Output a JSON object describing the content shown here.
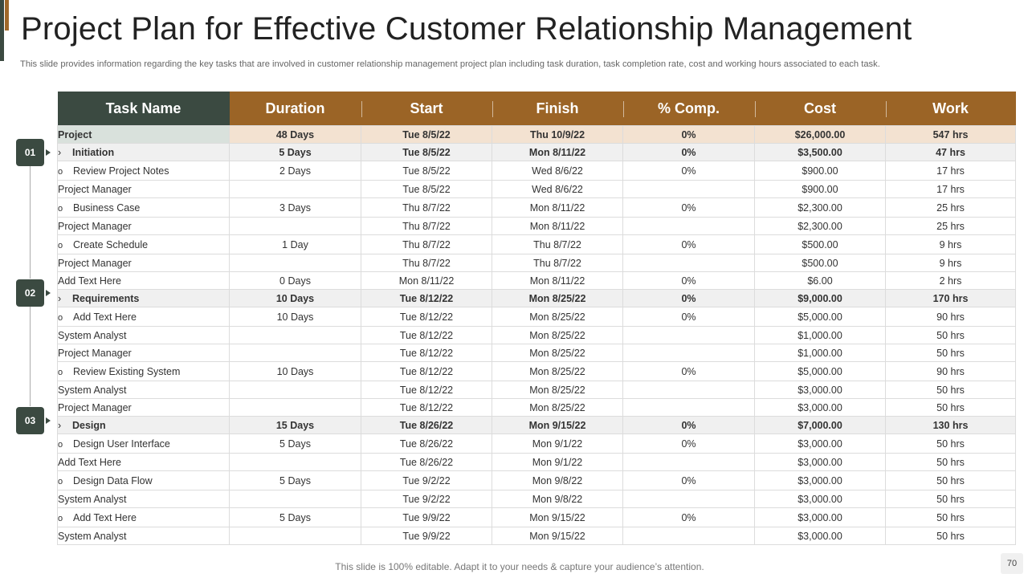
{
  "page": {
    "title": "Project Plan for Effective Customer Relationship Management",
    "subtitle": "This slide provides information regarding the key tasks that are involved in customer relationship management project plan including task duration, task completion rate, cost and working hours associated to each task.",
    "footer": "This slide is 100% editable. Adapt it to your needs & capture your audience’s attention.",
    "page_number": "70"
  },
  "colors": {
    "header_brown": "#9b6426",
    "header_green": "#3b4a41",
    "project_row_bg": "#f3e2d1",
    "phase_row_bg": "#f0f0f0"
  },
  "phase_badges": [
    "01",
    "02",
    "03"
  ],
  "table": {
    "columns": [
      "Task Name",
      "Duration",
      "Start",
      "Finish",
      "% Comp.",
      "Cost",
      "Work"
    ],
    "rows": [
      {
        "kind": "project",
        "level": 0,
        "marker": "",
        "task": "Project",
        "duration": "48 Days",
        "start": "Tue 8/5/22",
        "finish": "Thu 10/9/22",
        "comp": "0%",
        "cost": "$26,000.00",
        "work": "547 hrs"
      },
      {
        "kind": "phase",
        "level": 1,
        "marker": "›",
        "task": "Initiation",
        "duration": "5 Days",
        "start": "Tue 8/5/22",
        "finish": "Mon 8/11/22",
        "comp": "0%",
        "cost": "$3,500.00",
        "work": "47 hrs"
      },
      {
        "kind": "sub",
        "level": 2,
        "marker": "o",
        "task": "Review Project Notes",
        "duration": "2 Days",
        "start": "Tue 8/5/22",
        "finish": "Wed 8/6/22",
        "comp": "0%",
        "cost": "$900.00",
        "work": "17 hrs"
      },
      {
        "kind": "res",
        "level": 3,
        "marker": "",
        "task": "Project Manager",
        "duration": "",
        "start": "Tue 8/5/22",
        "finish": "Wed 8/6/22",
        "comp": "",
        "cost": "$900.00",
        "work": "17 hrs"
      },
      {
        "kind": "sub",
        "level": 2,
        "marker": "o",
        "task": "Business Case",
        "duration": "3 Days",
        "start": "Thu 8/7/22",
        "finish": "Mon 8/11/22",
        "comp": "0%",
        "cost": "$2,300.00",
        "work": "25 hrs"
      },
      {
        "kind": "res",
        "level": 3,
        "marker": "",
        "task": "Project Manager",
        "duration": "",
        "start": "Thu 8/7/22",
        "finish": "Mon 8/11/22",
        "comp": "",
        "cost": "$2,300.00",
        "work": "25 hrs"
      },
      {
        "kind": "sub",
        "level": 2,
        "marker": "o",
        "task": "Create Schedule",
        "duration": "1 Day",
        "start": "Thu 8/7/22",
        "finish": "Thu 8/7/22",
        "comp": "0%",
        "cost": "$500.00",
        "work": "9 hrs"
      },
      {
        "kind": "res",
        "level": 3,
        "marker": "",
        "task": "Project Manager",
        "duration": "",
        "start": "Thu 8/7/22",
        "finish": "Thu 8/7/22",
        "comp": "",
        "cost": "$500.00",
        "work": "9 hrs"
      },
      {
        "kind": "res",
        "level": 3,
        "marker": "",
        "task": "Add Text Here",
        "duration": "0 Days",
        "start": "Mon 8/11/22",
        "finish": "Mon 8/11/22",
        "comp": "0%",
        "cost": "$6.00",
        "work": "2 hrs"
      },
      {
        "kind": "phase",
        "level": 1,
        "marker": "›",
        "task": "Requirements",
        "duration": "10 Days",
        "start": "Tue 8/12/22",
        "finish": "Mon 8/25/22",
        "comp": "0%",
        "cost": "$9,000.00",
        "work": "170 hrs"
      },
      {
        "kind": "sub",
        "level": 2,
        "marker": "o",
        "task": "Add Text Here",
        "duration": "10 Days",
        "start": "Tue 8/12/22",
        "finish": "Mon 8/25/22",
        "comp": "0%",
        "cost": "$5,000.00",
        "work": "90 hrs"
      },
      {
        "kind": "res",
        "level": 3,
        "marker": "",
        "task": "System Analyst",
        "duration": "",
        "start": "Tue 8/12/22",
        "finish": "Mon 8/25/22",
        "comp": "",
        "cost": "$1,000.00",
        "work": "50 hrs"
      },
      {
        "kind": "res",
        "level": 3,
        "marker": "",
        "task": "Project Manager",
        "duration": "",
        "start": "Tue 8/12/22",
        "finish": "Mon 8/25/22",
        "comp": "",
        "cost": "$1,000.00",
        "work": "50 hrs"
      },
      {
        "kind": "sub",
        "level": 2,
        "marker": "o",
        "task": "Review Existing System",
        "duration": "10 Days",
        "start": "Tue 8/12/22",
        "finish": "Mon 8/25/22",
        "comp": "0%",
        "cost": "$5,000.00",
        "work": "90 hrs"
      },
      {
        "kind": "res",
        "level": 3,
        "marker": "",
        "task": "System Analyst",
        "duration": "",
        "start": "Tue 8/12/22",
        "finish": "Mon 8/25/22",
        "comp": "",
        "cost": "$3,000.00",
        "work": "50 hrs"
      },
      {
        "kind": "res",
        "level": 3,
        "marker": "",
        "task": "Project Manager",
        "duration": "",
        "start": "Tue 8/12/22",
        "finish": "Mon 8/25/22",
        "comp": "",
        "cost": "$3,000.00",
        "work": "50 hrs"
      },
      {
        "kind": "phase",
        "level": 1,
        "marker": "›",
        "task": "Design",
        "duration": "15 Days",
        "start": "Tue 8/26/22",
        "finish": "Mon 9/15/22",
        "comp": "0%",
        "cost": "$7,000.00",
        "work": "130 hrs"
      },
      {
        "kind": "sub",
        "level": 2,
        "marker": "o",
        "task": "Design User Interface",
        "duration": "5 Days",
        "start": "Tue 8/26/22",
        "finish": "Mon 9/1/22",
        "comp": "0%",
        "cost": "$3,000.00",
        "work": "50 hrs"
      },
      {
        "kind": "res",
        "level": 3,
        "marker": "",
        "task": "Add Text Here",
        "duration": "",
        "start": "Tue 8/26/22",
        "finish": "Mon 9/1/22",
        "comp": "",
        "cost": "$3,000.00",
        "work": "50 hrs"
      },
      {
        "kind": "sub",
        "level": 2,
        "marker": "o",
        "task": "Design Data Flow",
        "duration": "5 Days",
        "start": "Tue 9/2/22",
        "finish": "Mon 9/8/22",
        "comp": "0%",
        "cost": "$3,000.00",
        "work": "50 hrs"
      },
      {
        "kind": "res",
        "level": 3,
        "marker": "",
        "task": "System Analyst",
        "duration": "",
        "start": "Tue 9/2/22",
        "finish": "Mon 9/8/22",
        "comp": "",
        "cost": "$3,000.00",
        "work": "50 hrs"
      },
      {
        "kind": "sub",
        "level": 2,
        "marker": "o",
        "task": "Add Text Here",
        "duration": "5 Days",
        "start": "Tue 9/9/22",
        "finish": "Mon 9/15/22",
        "comp": "0%",
        "cost": "$3,000.00",
        "work": "50 hrs"
      },
      {
        "kind": "res",
        "level": 3,
        "marker": "",
        "task": "System Analyst",
        "duration": "",
        "start": "Tue 9/9/22",
        "finish": "Mon 9/15/22",
        "comp": "",
        "cost": "$3,000.00",
        "work": "50 hrs"
      }
    ]
  }
}
